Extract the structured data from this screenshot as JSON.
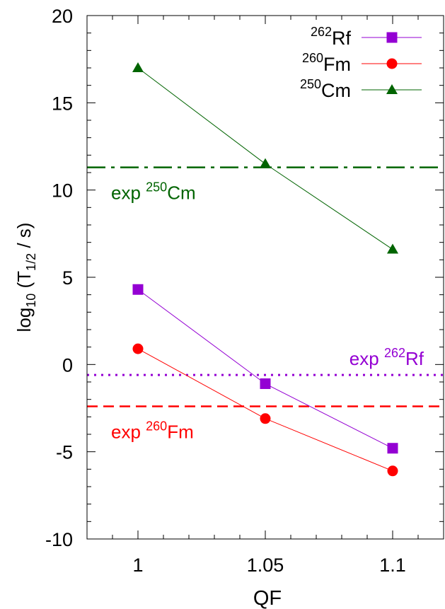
{
  "chart_data": {
    "type": "line",
    "xlabel": "QF",
    "ylabel": {
      "prefix": "log",
      "prefix_sub": "10",
      "paren_open": " (T",
      "inner_sub": "1/2",
      "suffix": " / s)"
    },
    "x": [
      1,
      1.05,
      1.1
    ],
    "x_tick_labels": [
      "1",
      "1.05",
      "1.1"
    ],
    "xlim": [
      0.98,
      1.12
    ],
    "ylim": [
      -10,
      20
    ],
    "y_ticks": [
      -10,
      -5,
      0,
      5,
      10,
      15,
      20
    ],
    "y_tick_labels": [
      "-10",
      "-5",
      "0",
      "5",
      "10",
      "15",
      "20"
    ],
    "grid": false,
    "legend_position": "top-right",
    "series": [
      {
        "key": "rf",
        "name_sup": "262",
        "name_text": "Rf",
        "marker": "square",
        "color": "#9400D3",
        "values": [
          4.3,
          -1.1,
          -4.8
        ]
      },
      {
        "key": "fm",
        "name_sup": "260",
        "name_text": "Fm",
        "marker": "circle",
        "color": "#FF0000",
        "values": [
          0.9,
          -3.1,
          -6.1
        ]
      },
      {
        "key": "cm",
        "name_sup": "250",
        "name_text": "Cm",
        "marker": "triangle",
        "color": "#006400",
        "values": [
          17.0,
          11.5,
          6.6
        ]
      }
    ],
    "reference_lines": [
      {
        "key": "cm",
        "value": 11.3,
        "style": "dash-dot",
        "color": "#006400",
        "label_prefix": "exp ",
        "label_sup": "250",
        "label_text": "Cm"
      },
      {
        "key": "rf",
        "value": -0.6,
        "style": "dotted",
        "color": "#9400D3",
        "label_prefix": "exp ",
        "label_sup": "262",
        "label_text": "Rf"
      },
      {
        "key": "fm",
        "value": -2.4,
        "style": "dashed",
        "color": "#FF0000",
        "label_prefix": "exp ",
        "label_sup": "260",
        "label_text": "Fm"
      }
    ]
  }
}
